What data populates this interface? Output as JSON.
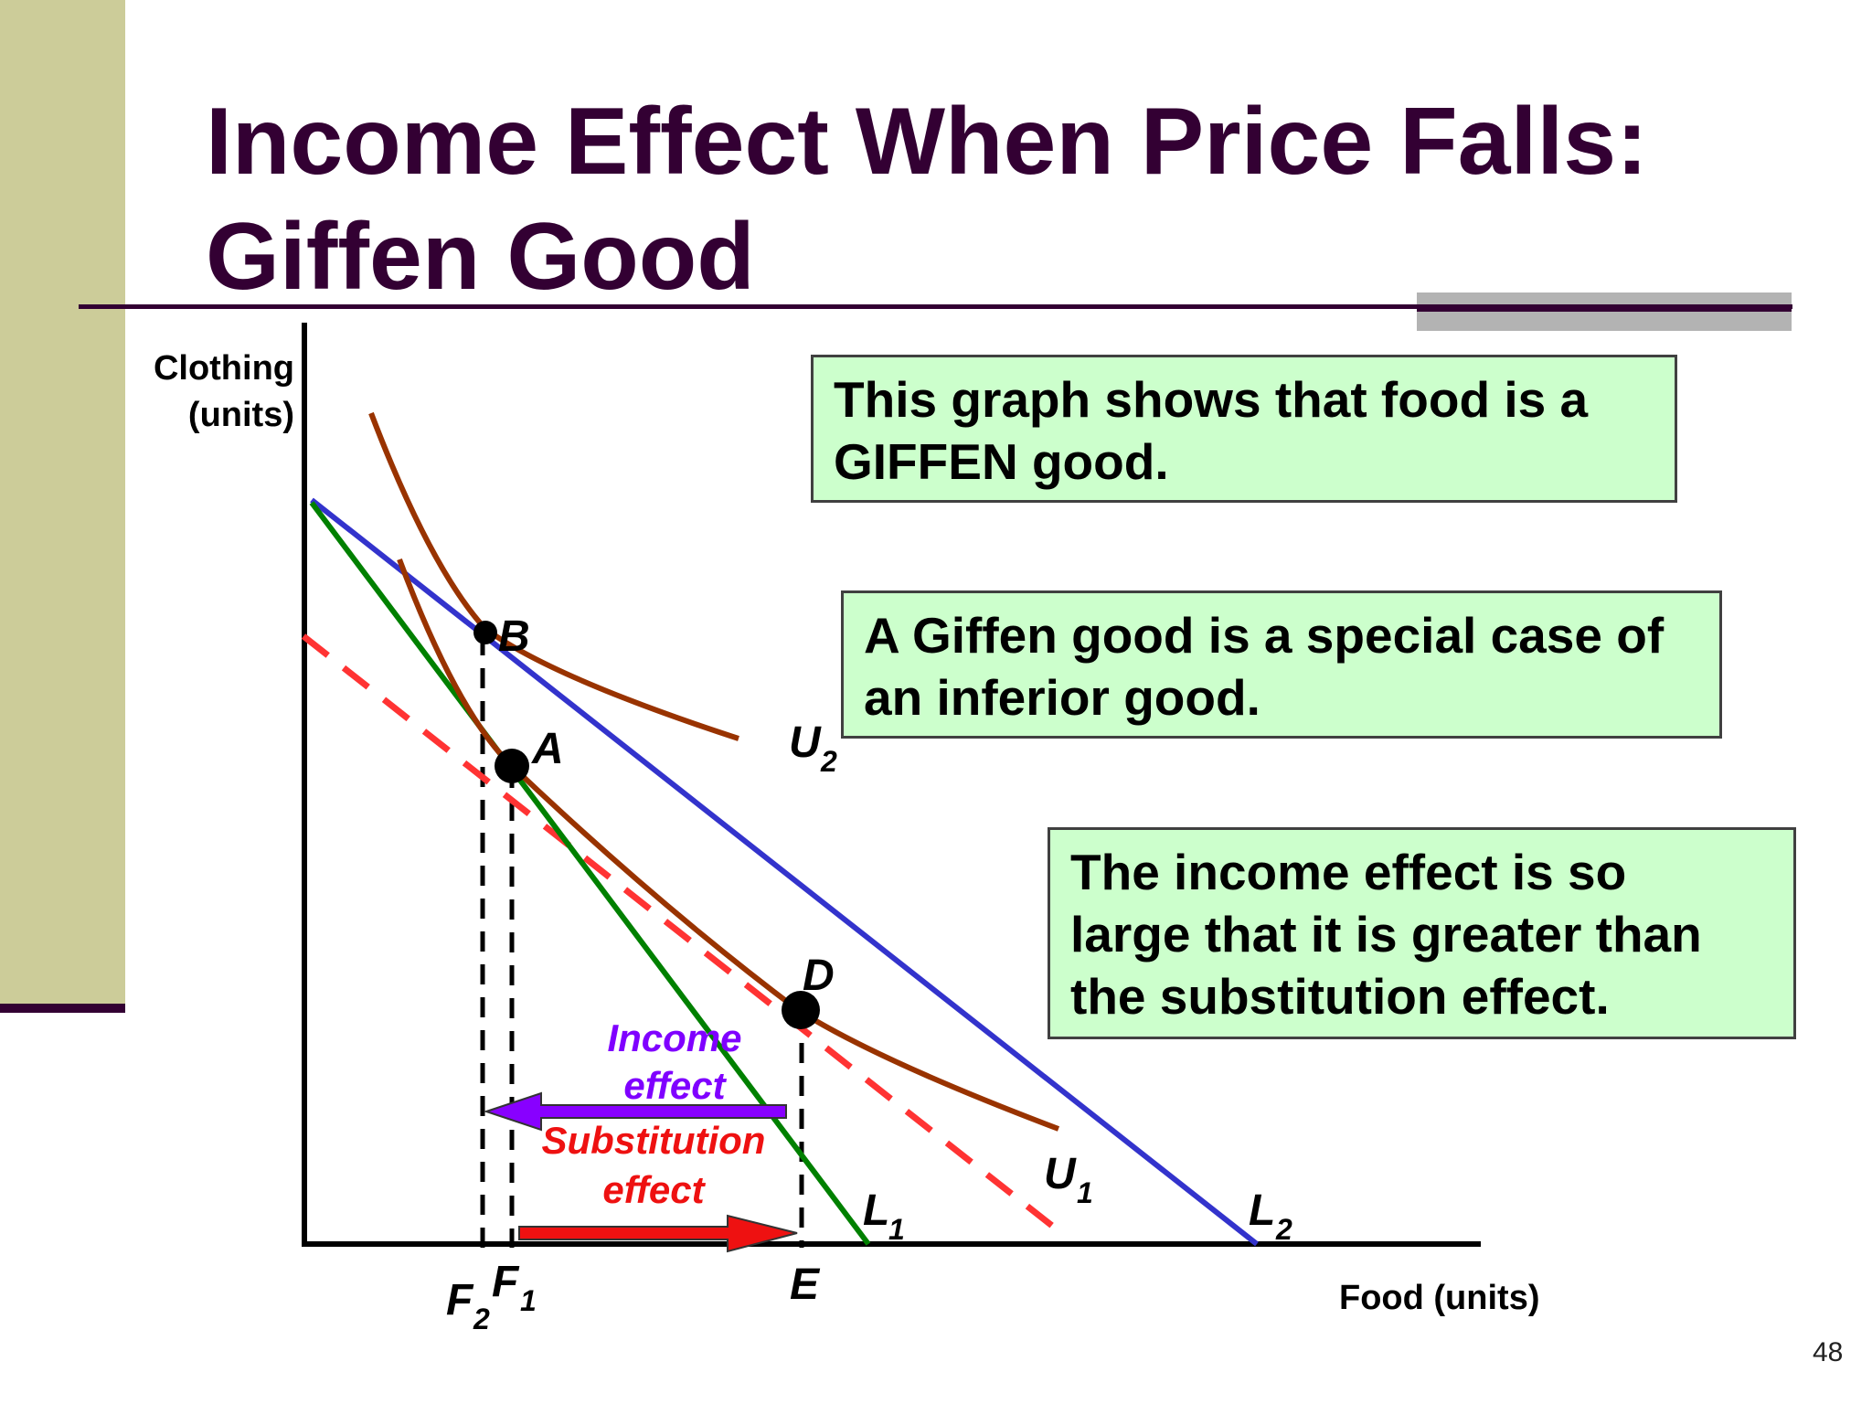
{
  "title": {
    "line1": "Income Effect When Price Falls:",
    "line2": "Giffen Good"
  },
  "axes": {
    "y_label_line1": "Clothing",
    "y_label_line2": "(units)",
    "x_label": "Food (units)"
  },
  "labels": {
    "point_a": "A",
    "point_b": "B",
    "point_d": "D",
    "point_e": "E",
    "u1": "U",
    "u1_sub": "1",
    "u2": "U",
    "u2_sub": "2",
    "l1": "L",
    "l1_sub": "1",
    "l2": "L",
    "l2_sub": "2",
    "f1": "F",
    "f1_sub": "1",
    "f2": "F",
    "f2_sub": "2",
    "income_effect_line1": "Income",
    "income_effect_line2": "effect",
    "substitution_effect_line1": "Substitution",
    "substitution_effect_line2": "effect"
  },
  "boxes": {
    "box1": [
      "This graph shows that food is a",
      "GIFFEN good."
    ],
    "box2": [
      "A Giffen good is a special case of",
      "an inferior good."
    ],
    "box3": [
      "The income effect is so",
      "large that it is greater than",
      "the substitution effect."
    ]
  },
  "page_number": "48",
  "colors": {
    "title": "#330033",
    "budget_l1": "#008000",
    "budget_l2": "#3333cc",
    "dashed_line": "#ff3333",
    "indifference_curves": "#993300",
    "income_effect": "#7f00ff",
    "substitution_effect": "#ee1111",
    "box_fill": "#ccffcc"
  }
}
